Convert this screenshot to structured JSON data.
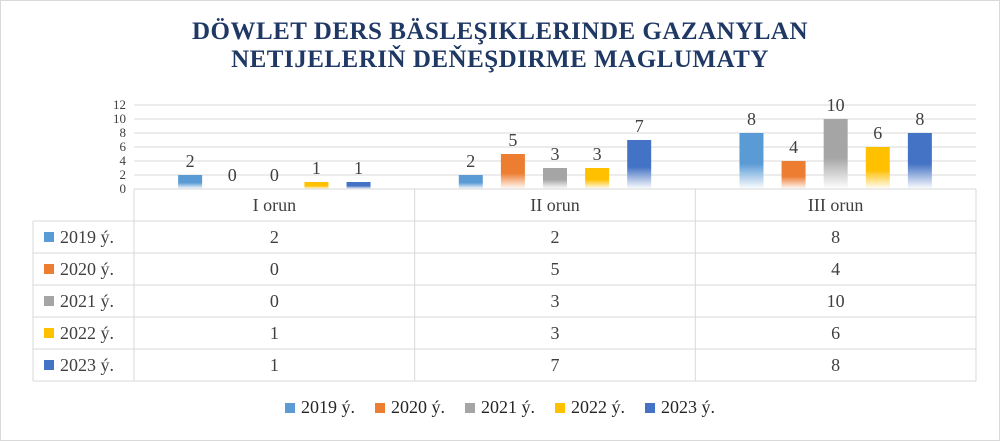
{
  "chart_data": {
    "type": "bar",
    "title_lines": [
      "DÖWLET DERS BÄSLEŞIKLERINDE GAZANYLAN",
      "NETIJELERIŇ DEŇEŞDIRME MAGLUMATY"
    ],
    "categories": [
      "I orun",
      "II orun",
      "III orun"
    ],
    "series": [
      {
        "name": "2019 ý.",
        "color": "#5b9bd5",
        "values": [
          2,
          2,
          8
        ]
      },
      {
        "name": "2020 ý.",
        "color": "#ed7d31",
        "values": [
          0,
          5,
          4
        ]
      },
      {
        "name": "2021 ý.",
        "color": "#a5a5a5",
        "values": [
          0,
          3,
          10
        ]
      },
      {
        "name": "2022 ý.",
        "color": "#ffc000",
        "values": [
          1,
          3,
          6
        ]
      },
      {
        "name": "2023 ý.",
        "color": "#4472c4",
        "values": [
          1,
          7,
          8
        ]
      }
    ],
    "ylim": [
      0,
      12
    ],
    "yticks": [
      0,
      2,
      4,
      6,
      8,
      10,
      12
    ],
    "grid": true,
    "data_table": true,
    "legend_position": "bottom"
  }
}
